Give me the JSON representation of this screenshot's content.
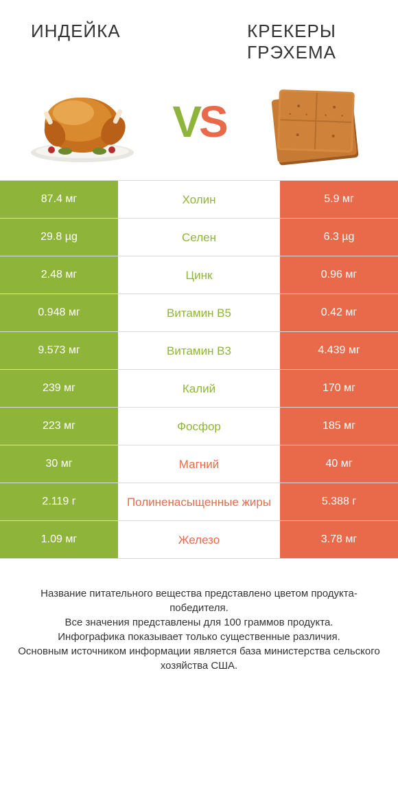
{
  "colors": {
    "green": "#8fb43a",
    "orange": "#e96a4a",
    "border": "#d9d9d9",
    "text": "#333333",
    "white": "#ffffff"
  },
  "left": {
    "title": "ИНДЕЙКА"
  },
  "right": {
    "title": "КРЕКЕРЫ ГРЭХЕМА"
  },
  "vs": {
    "v": "V",
    "s": "S"
  },
  "rows": [
    {
      "left": "87.4 мг",
      "label": "Холин",
      "right": "5.9 мг",
      "winner": "left"
    },
    {
      "left": "29.8 µg",
      "label": "Селен",
      "right": "6.3 µg",
      "winner": "left"
    },
    {
      "left": "2.48 мг",
      "label": "Цинк",
      "right": "0.96 мг",
      "winner": "left"
    },
    {
      "left": "0.948 мг",
      "label": "Витамин B5",
      "right": "0.42 мг",
      "winner": "left"
    },
    {
      "left": "9.573 мг",
      "label": "Витамин B3",
      "right": "4.439 мг",
      "winner": "left"
    },
    {
      "left": "239 мг",
      "label": "Калий",
      "right": "170 мг",
      "winner": "left"
    },
    {
      "left": "223 мг",
      "label": "Фосфор",
      "right": "185 мг",
      "winner": "left"
    },
    {
      "left": "30 мг",
      "label": "Магний",
      "right": "40 мг",
      "winner": "right"
    },
    {
      "left": "2.119 г",
      "label": "Полиненасыщенные жиры",
      "right": "5.388 г",
      "winner": "right"
    },
    {
      "left": "1.09 мг",
      "label": "Железо",
      "right": "3.78 мг",
      "winner": "right"
    }
  ],
  "footer": {
    "l1": "Название питательного вещества представлено цветом продукта-победителя.",
    "l2": "Все значения представлены для 100 граммов продукта.",
    "l3": "Инфографика показывает только существенные различия.",
    "l4": "Основным источником информации является база министерства сельского хозяйства США."
  }
}
